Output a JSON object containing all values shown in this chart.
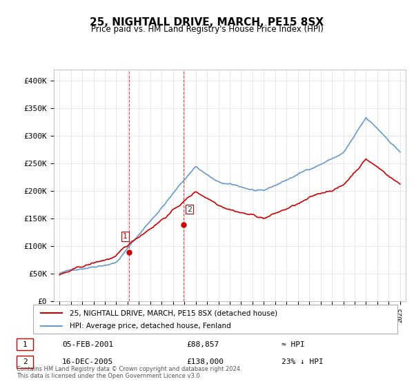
{
  "title": "25, NIGHTALL DRIVE, MARCH, PE15 8SX",
  "subtitle": "Price paid vs. HM Land Registry's House Price Index (HPI)",
  "legend_line1": "25, NIGHTALL DRIVE, MARCH, PE15 8SX (detached house)",
  "legend_line2": "HPI: Average price, detached house, Fenland",
  "table_row1": [
    "1",
    "05-FEB-2001",
    "£88,857",
    "≈ HPI"
  ],
  "table_row2": [
    "2",
    "16-DEC-2005",
    "£138,000",
    "23% ↓ HPI"
  ],
  "footnote": "Contains HM Land Registry data © Crown copyright and database right 2024.\nThis data is licensed under the Open Government Licence v3.0.",
  "red_color": "#cc0000",
  "blue_color": "#6699cc",
  "dashed_red": "#cc0000",
  "ylim": [
    0,
    420000
  ],
  "yticks": [
    0,
    50000,
    100000,
    150000,
    200000,
    250000,
    300000,
    350000,
    400000
  ],
  "ytick_labels": [
    "£0",
    "£50K",
    "£100K",
    "£150K",
    "£200K",
    "£250K",
    "£300K",
    "£350K",
    "£400K"
  ],
  "x_start_year": 1995,
  "x_end_year": 2025,
  "marker1_year": 2001.1,
  "marker1_value": 88857,
  "marker1_label": "1",
  "marker2_year": 2005.95,
  "marker2_value": 138000,
  "marker2_label": "2",
  "vline1_year": 2001.1,
  "vline2_year": 2005.95
}
